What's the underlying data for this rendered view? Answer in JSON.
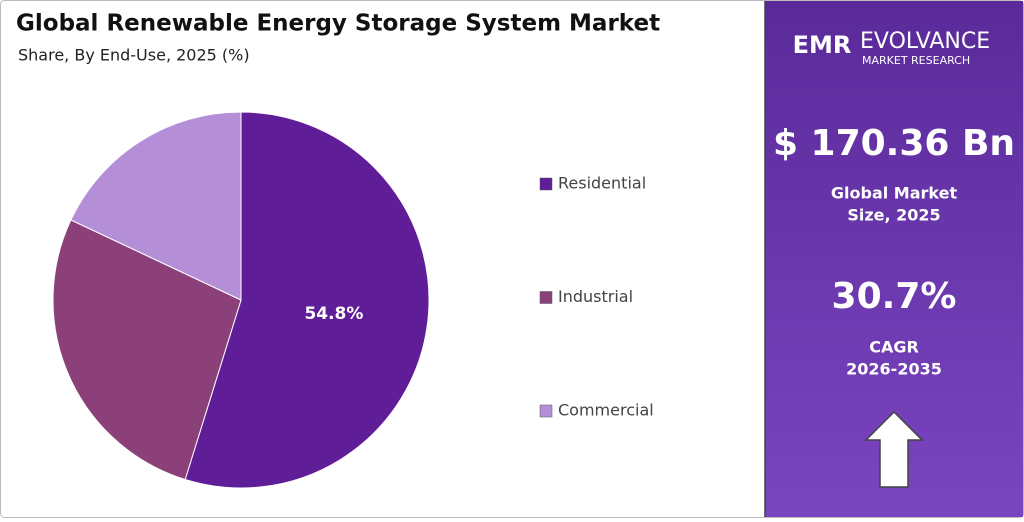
{
  "chart_data": {
    "type": "pie",
    "title": "Global Renewable Energy Storage System Market",
    "subtitle": "Share, By End-Use, 2025 (%)",
    "categories": [
      "Residential",
      "Industrial",
      "Commercial"
    ],
    "values": [
      54.8,
      27.2,
      18.0
    ],
    "value_labels": [
      "54.8%",
      null,
      null
    ],
    "colors": [
      "#5f1e98",
      "#8c4079",
      "#b58ed8"
    ],
    "legend": "right"
  },
  "logo": {
    "mark": "EMR",
    "name": "EVOLVANCE",
    "tagline": "MARKET RESEARCH"
  },
  "panel": {
    "market_size": "$ 170.36 Bn",
    "market_size_label": [
      "Global Market",
      "Size, 2025"
    ],
    "cagr": "30.7%",
    "cagr_label": [
      "CAGR",
      "2026-2035"
    ]
  }
}
